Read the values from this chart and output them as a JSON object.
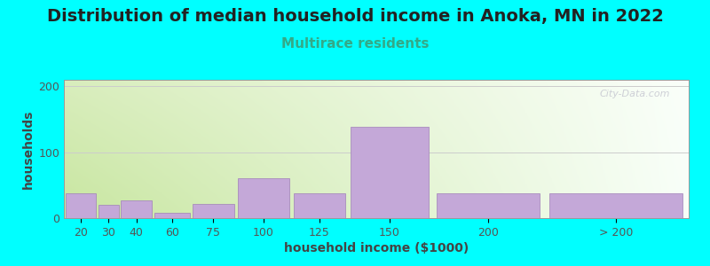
{
  "title": "Distribution of median household income in Anoka, MN in 2022",
  "subtitle": "Multirace residents",
  "xlabel": "household income ($1000)",
  "ylabel": "households",
  "background_color": "#00FFFF",
  "grad_color_left": "#c8e6a0",
  "grad_color_right": "#f8fff8",
  "bar_color": "#c4a8d8",
  "bar_edge_color": "#a080b8",
  "categories": [
    "20",
    "30",
    "40",
    "60",
    "75",
    "100",
    "125",
    "150",
    "200",
    "> 200"
  ],
  "values": [
    38,
    20,
    27,
    8,
    22,
    60,
    38,
    138,
    38,
    38
  ],
  "bin_edges": [
    10,
    25,
    35,
    50,
    67,
    87,
    112,
    137,
    175,
    225,
    290
  ],
  "ylim": [
    0,
    210
  ],
  "yticks": [
    0,
    100,
    200
  ],
  "title_fontsize": 14,
  "subtitle_fontsize": 11,
  "axis_label_fontsize": 10,
  "tick_fontsize": 9,
  "watermark": "City-Data.com"
}
